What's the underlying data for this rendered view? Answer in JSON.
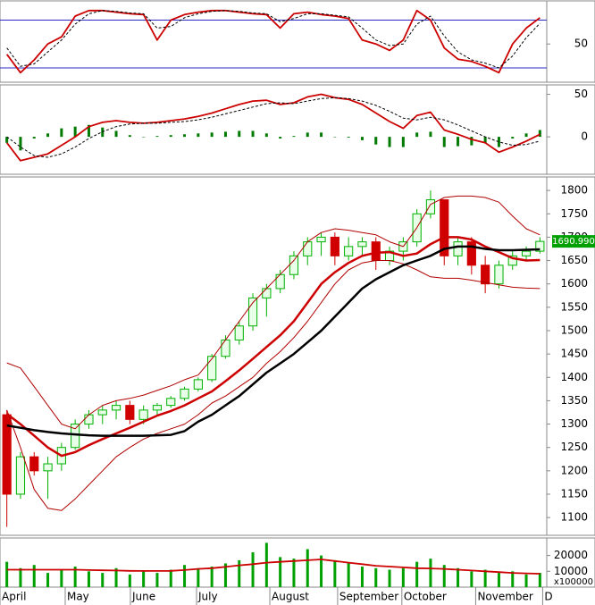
{
  "chart_data": [
    {
      "type": "line",
      "xlim": [
        -0.5,
        39.5
      ],
      "ylim": [
        2,
        103
      ],
      "yticks": [
        50
      ],
      "hlines": [
        20,
        80
      ],
      "hline_color": "#2b2bc4",
      "series": [
        {
          "color": "#cc0000",
          "style": "solid",
          "values": [
            37,
            14,
            30,
            50,
            59,
            85,
            92,
            92,
            90,
            88,
            87,
            55,
            80,
            87,
            90,
            92,
            92,
            90,
            88,
            87,
            70,
            88,
            90,
            87,
            85,
            82,
            55,
            50,
            42,
            55,
            92,
            80,
            45,
            31,
            28,
            22,
            14,
            50,
            70,
            83
          ]
        },
        {
          "color": "#000000",
          "style": "dashed",
          "values": [
            45,
            22,
            25,
            40,
            55,
            75,
            88,
            92,
            91,
            89,
            88,
            70,
            72,
            83,
            88,
            91,
            92,
            91,
            89,
            88,
            78,
            82,
            88,
            88,
            86,
            84,
            70,
            55,
            48,
            50,
            75,
            85,
            60,
            40,
            30,
            26,
            20,
            35,
            58,
            76
          ]
        }
      ]
    },
    {
      "type": "line",
      "xlim": [
        -0.5,
        39.5
      ],
      "ylim": [
        -44,
        60
      ],
      "yticks": [
        0,
        50
      ],
      "series": [
        {
          "type": "bar",
          "color": "#007a00",
          "values": [
            -7,
            -16,
            -2,
            4,
            10,
            12,
            14,
            11,
            7,
            2,
            0,
            1,
            2,
            3,
            4,
            5,
            6,
            7,
            7,
            4,
            -2,
            1,
            5,
            5,
            0,
            -1,
            -4,
            -9,
            -12,
            -12,
            5,
            6,
            -12,
            -11,
            -10,
            -7,
            -12,
            -2,
            4,
            8
          ]
        },
        {
          "color": "#cc0000",
          "style": "solid",
          "values": [
            -7,
            -28,
            -24,
            -20,
            -10,
            0,
            12,
            17,
            19,
            17,
            16,
            17,
            19,
            21,
            24,
            28,
            33,
            38,
            42,
            43,
            38,
            40,
            47,
            50,
            46,
            44,
            38,
            28,
            18,
            10,
            25,
            29,
            8,
            3,
            -3,
            -7,
            -18,
            -12,
            -5,
            3
          ]
        },
        {
          "color": "#000000",
          "style": "dashed",
          "values": [
            0,
            -12,
            -22,
            -24,
            -20,
            -12,
            -2,
            6,
            12,
            15,
            16,
            16,
            17,
            18,
            20,
            23,
            27,
            31,
            35,
            39,
            40,
            39,
            42,
            45,
            46,
            45,
            42,
            37,
            30,
            22,
            20,
            23,
            20,
            14,
            7,
            0,
            -6,
            -10,
            -9,
            -5
          ]
        }
      ]
    },
    {
      "type": "candlestick",
      "xlim": [
        -0.5,
        39.5
      ],
      "ylim": [
        1062,
        1827
      ],
      "yticks": [
        1100,
        1150,
        1200,
        1250,
        1300,
        1350,
        1400,
        1450,
        1500,
        1550,
        1600,
        1650,
        1700,
        1750,
        1800
      ],
      "up_color": "#00b000",
      "down_color": "#d00000",
      "open": [
        1320,
        1150,
        1230,
        1200,
        1215,
        1250,
        1300,
        1320,
        1330,
        1340,
        1310,
        1330,
        1340,
        1355,
        1375,
        1395,
        1445,
        1480,
        1510,
        1570,
        1590,
        1620,
        1660,
        1690,
        1700,
        1660,
        1680,
        1690,
        1650,
        1670,
        1690,
        1750,
        1780,
        1660,
        1690,
        1640,
        1600,
        1640,
        1660,
        1670
      ],
      "high": [
        1330,
        1240,
        1240,
        1230,
        1260,
        1310,
        1330,
        1340,
        1350,
        1350,
        1340,
        1345,
        1360,
        1380,
        1400,
        1450,
        1490,
        1520,
        1580,
        1600,
        1630,
        1670,
        1700,
        1710,
        1710,
        1700,
        1700,
        1700,
        1680,
        1700,
        1760,
        1800,
        1780,
        1700,
        1700,
        1660,
        1650,
        1670,
        1680,
        1700
      ],
      "low": [
        1080,
        1140,
        1190,
        1140,
        1200,
        1245,
        1290,
        1300,
        1310,
        1300,
        1300,
        1320,
        1335,
        1350,
        1370,
        1390,
        1440,
        1470,
        1500,
        1530,
        1580,
        1610,
        1640,
        1660,
        1640,
        1650,
        1660,
        1630,
        1640,
        1650,
        1680,
        1740,
        1640,
        1640,
        1620,
        1580,
        1590,
        1630,
        1650,
        1665
      ],
      "close": [
        1150,
        1230,
        1200,
        1215,
        1250,
        1300,
        1320,
        1330,
        1340,
        1310,
        1330,
        1340,
        1355,
        1375,
        1395,
        1445,
        1480,
        1510,
        1570,
        1590,
        1620,
        1660,
        1690,
        1700,
        1660,
        1680,
        1690,
        1650,
        1670,
        1690,
        1750,
        1780,
        1660,
        1690,
        1640,
        1600,
        1640,
        1660,
        1670,
        1691
      ],
      "last_price": {
        "value": 1690.99,
        "label": "1690.990"
      },
      "last_price_color": "#00a000",
      "series": [
        {
          "color": "#b00000",
          "style": "thin",
          "values": [
            1431,
            1420,
            1380,
            1340,
            1300,
            1290,
            1320,
            1340,
            1350,
            1355,
            1362,
            1372,
            1382,
            1395,
            1405,
            1440,
            1480,
            1520,
            1560,
            1590,
            1620,
            1650,
            1690,
            1710,
            1718,
            1715,
            1710,
            1705,
            1690,
            1680,
            1720,
            1770,
            1785,
            1788,
            1788,
            1785,
            1775,
            1745,
            1718,
            1705
          ]
        },
        {
          "color": "#b00000",
          "style": "thin",
          "values": [
            1330,
            1250,
            1160,
            1120,
            1115,
            1140,
            1170,
            1200,
            1230,
            1250,
            1268,
            1280,
            1290,
            1300,
            1320,
            1345,
            1360,
            1380,
            1400,
            1430,
            1455,
            1485,
            1520,
            1560,
            1600,
            1630,
            1645,
            1650,
            1650,
            1643,
            1630,
            1615,
            1612,
            1612,
            1608,
            1603,
            1598,
            1593,
            1591,
            1590
          ]
        },
        {
          "color": "#cc0000",
          "style": "thick",
          "values": [
            1322,
            1300,
            1275,
            1250,
            1232,
            1240,
            1255,
            1268,
            1280,
            1292,
            1305,
            1318,
            1328,
            1340,
            1355,
            1370,
            1392,
            1415,
            1440,
            1465,
            1490,
            1520,
            1560,
            1600,
            1625,
            1645,
            1660,
            1667,
            1668,
            1660,
            1665,
            1685,
            1700,
            1700,
            1695,
            1680,
            1668,
            1655,
            1650,
            1651
          ]
        },
        {
          "color": "#000000",
          "style": "thick",
          "values": [
            1297,
            1292,
            1287,
            1283,
            1280,
            1278,
            1276,
            1275,
            1275,
            1275,
            1275,
            1276,
            1277,
            1285,
            1305,
            1320,
            1340,
            1360,
            1385,
            1410,
            1430,
            1450,
            1475,
            1500,
            1530,
            1560,
            1590,
            1610,
            1625,
            1640,
            1650,
            1660,
            1675,
            1680,
            1680,
            1675,
            1672,
            1672,
            1673,
            1674
          ]
        }
      ]
    },
    {
      "type": "line",
      "xlim": [
        -0.5,
        39.5
      ],
      "ylim": [
        0,
        30500
      ],
      "yticks": [
        10000,
        20000
      ],
      "unit_label": "x100000",
      "xticks": [
        {
          "value": -0.5,
          "label": "April"
        },
        {
          "value": 4.27,
          "label": "May"
        },
        {
          "value": 9.04,
          "label": "June"
        },
        {
          "value": 13.88,
          "label": "July"
        },
        {
          "value": 19.24,
          "label": "August"
        },
        {
          "value": 24.2,
          "label": "September"
        },
        {
          "value": 28.9,
          "label": "October"
        },
        {
          "value": 34.3,
          "label": "November"
        },
        {
          "value": 39.2,
          "label": "D"
        }
      ],
      "series": [
        {
          "type": "bar",
          "color": "#00a000",
          "values": [
            16000,
            12000,
            14000,
            9000,
            11000,
            13000,
            10000,
            9000,
            12000,
            8000,
            10000,
            9000,
            11000,
            14000,
            12000,
            13000,
            15000,
            17000,
            22000,
            28000,
            19000,
            18000,
            24000,
            20000,
            17000,
            15000,
            13000,
            12000,
            11000,
            12000,
            16000,
            18000,
            14000,
            12000,
            10000,
            11000,
            9000,
            10000,
            8000,
            9000
          ]
        },
        {
          "color": "#cc0000",
          "style": "solid",
          "values": [
            11000,
            11000,
            11000,
            11000,
            11000,
            11000,
            10800,
            10600,
            10500,
            10300,
            10200,
            10200,
            10300,
            10800,
            11500,
            12000,
            12800,
            13800,
            14500,
            15500,
            16000,
            16500,
            17000,
            17500,
            16500,
            15500,
            14500,
            13500,
            13000,
            12500,
            12000,
            11800,
            11500,
            11000,
            10500,
            10000,
            9500,
            9000,
            8700,
            8500
          ]
        }
      ]
    }
  ]
}
